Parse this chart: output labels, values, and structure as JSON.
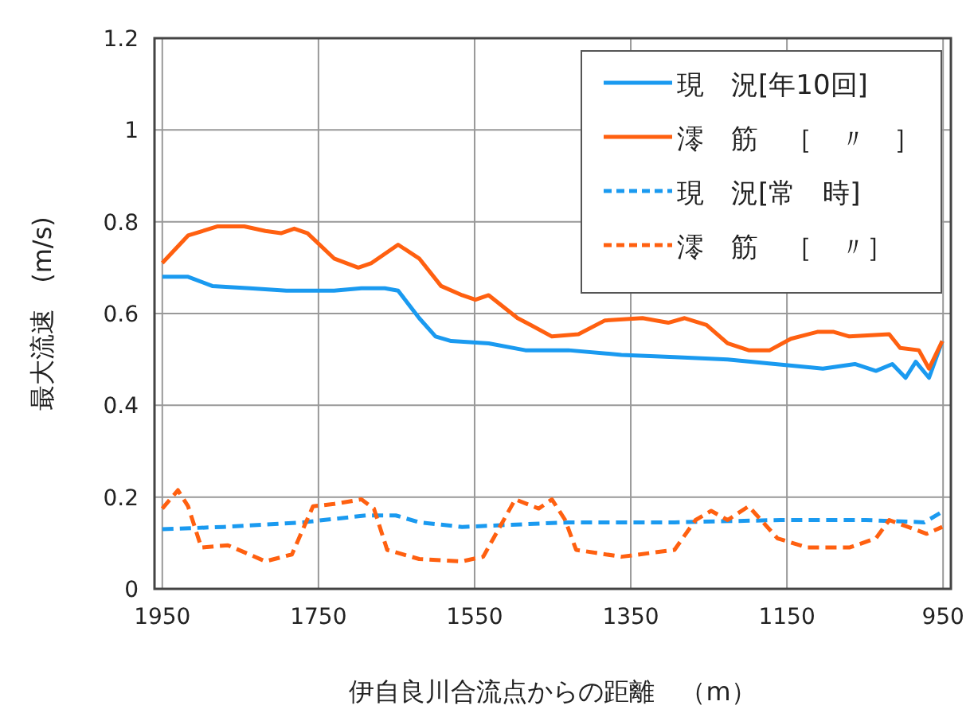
{
  "chart_data": {
    "type": "line",
    "xlabel": "伊自良川合流点からの距離　（m）",
    "ylabel": "最大流速　(m/s)",
    "xlim": [
      1960,
      940
    ],
    "xticks": [
      1950,
      1750,
      1550,
      1350,
      1150,
      950
    ],
    "ylim": [
      0,
      1.2
    ],
    "yticks": [
      0,
      0.2,
      0.4,
      0.6,
      0.8,
      1,
      1.2
    ],
    "grid": true,
    "legend": "top right",
    "marker": "none",
    "series": [
      {
        "name": "現　況[年10回]",
        "color": "#1a9af0",
        "line_style": "solid",
        "x": [
          1950,
          1917,
          1886,
          1838,
          1791,
          1730,
          1695,
          1665,
          1648,
          1621,
          1600,
          1580,
          1532,
          1485,
          1430,
          1362,
          1294,
          1226,
          1165,
          1104,
          1063,
          1036,
          1015,
          998,
          985,
          968,
          951
        ],
        "values": [
          0.68,
          0.68,
          0.66,
          0.655,
          0.65,
          0.65,
          0.655,
          0.655,
          0.65,
          0.59,
          0.55,
          0.54,
          0.535,
          0.52,
          0.52,
          0.51,
          0.505,
          0.5,
          0.49,
          0.48,
          0.49,
          0.475,
          0.49,
          0.46,
          0.495,
          0.46,
          0.54
        ]
      },
      {
        "name": "澪　筋　［　〃　］",
        "color": "#ff6010",
        "line_style": "solid",
        "x": [
          1950,
          1917,
          1879,
          1845,
          1818,
          1798,
          1781,
          1764,
          1730,
          1699,
          1682,
          1648,
          1621,
          1593,
          1566,
          1549,
          1532,
          1495,
          1478,
          1451,
          1417,
          1383,
          1335,
          1302,
          1281,
          1253,
          1226,
          1199,
          1172,
          1145,
          1111,
          1090,
          1070,
          1019,
          1005,
          981,
          968,
          951
        ],
        "values": [
          0.71,
          0.77,
          0.79,
          0.79,
          0.78,
          0.775,
          0.785,
          0.775,
          0.72,
          0.7,
          0.71,
          0.75,
          0.72,
          0.66,
          0.64,
          0.63,
          0.64,
          0.59,
          0.575,
          0.55,
          0.555,
          0.585,
          0.59,
          0.58,
          0.59,
          0.575,
          0.535,
          0.52,
          0.52,
          0.545,
          0.56,
          0.56,
          0.55,
          0.555,
          0.525,
          0.52,
          0.48,
          0.54
        ]
      },
      {
        "name": "現　況[常　時]",
        "color": "#1a9af0",
        "line_style": "dashed",
        "x": [
          1950,
          1872,
          1770,
          1689,
          1651,
          1621,
          1566,
          1430,
          1294,
          1158,
          1049,
          974,
          954
        ],
        "values": [
          0.13,
          0.135,
          0.145,
          0.16,
          0.16,
          0.145,
          0.135,
          0.145,
          0.145,
          0.15,
          0.15,
          0.145,
          0.165
        ]
      },
      {
        "name": "澪　筋　［　〃］",
        "color": "#ff6010",
        "line_style": "dashed",
        "x": [
          1950,
          1930,
          1917,
          1900,
          1866,
          1818,
          1784,
          1757,
          1730,
          1695,
          1679,
          1662,
          1621,
          1566,
          1539,
          1498,
          1468,
          1451,
          1434,
          1420,
          1362,
          1294,
          1267,
          1247,
          1226,
          1199,
          1162,
          1124,
          1070,
          1036,
          1019,
          995,
          971,
          951
        ],
        "values": [
          0.175,
          0.215,
          0.18,
          0.09,
          0.095,
          0.06,
          0.075,
          0.18,
          0.185,
          0.195,
          0.175,
          0.085,
          0.065,
          0.06,
          0.07,
          0.195,
          0.175,
          0.195,
          0.15,
          0.085,
          0.07,
          0.085,
          0.15,
          0.17,
          0.15,
          0.18,
          0.11,
          0.09,
          0.09,
          0.11,
          0.15,
          0.135,
          0.12,
          0.135
        ]
      }
    ]
  }
}
